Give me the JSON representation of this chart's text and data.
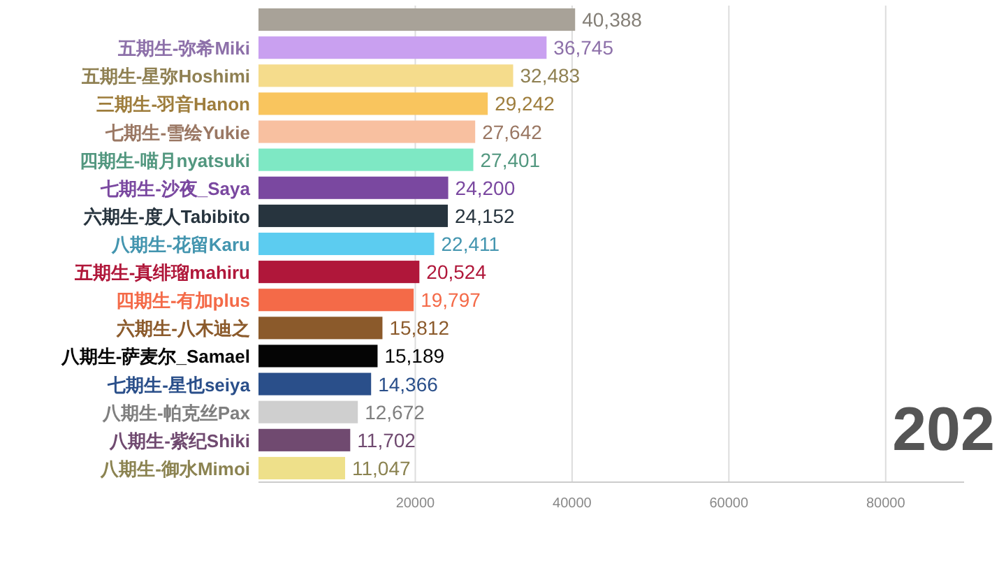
{
  "chart_data": {
    "type": "bar",
    "orientation": "horizontal",
    "categories": [
      null,
      "五期生-弥希Miki",
      "五期生-星弥Hoshimi",
      "三期生-羽音Hanon",
      "七期生-雪绘Yukie",
      "四期生-喵月nyatsuki",
      "七期生-沙夜_Saya",
      "六期生-度人Tabibito",
      "八期生-花留Karu",
      "五期生-真绯瑠mahiru",
      "四期生-有加plus",
      "六期生-八木迪之",
      "八期生-萨麦尔_Samael",
      "七期生-星也seiya",
      "八期生-帕克丝Pax",
      "八期生-紫纪Shiki",
      "八期生-御水Mimoi"
    ],
    "values": [
      40388,
      36745,
      32483,
      29242,
      27642,
      27401,
      24200,
      24152,
      22411,
      20524,
      19797,
      15812,
      15189,
      14366,
      12672,
      11702,
      11047
    ],
    "value_labels": [
      "40,388",
      "36,745",
      "32,483",
      "29,242",
      "27,642",
      "27,401",
      "24,200",
      "24,152",
      "22,411",
      "20,524",
      "19,797",
      "15,812",
      "15,189",
      "14,366",
      "12,672",
      "11,702",
      "11,047"
    ],
    "colors": [
      "#a8a298",
      "#c9a0f0",
      "#f5dc8c",
      "#f9c55e",
      "#f8c0a0",
      "#7ee8c4",
      "#7a48a0",
      "#27343e",
      "#5cccf0",
      "#b0173a",
      "#f46a48",
      "#8b5a2b",
      "#050505",
      "#2a4f8a",
      "#cfcfcf",
      "#704a70",
      "#eee08a"
    ],
    "xlim": [
      0,
      90000
    ],
    "xticks": [
      20000,
      40000,
      60000,
      80000
    ],
    "grid": "x",
    "annotations": [
      "202"
    ]
  }
}
